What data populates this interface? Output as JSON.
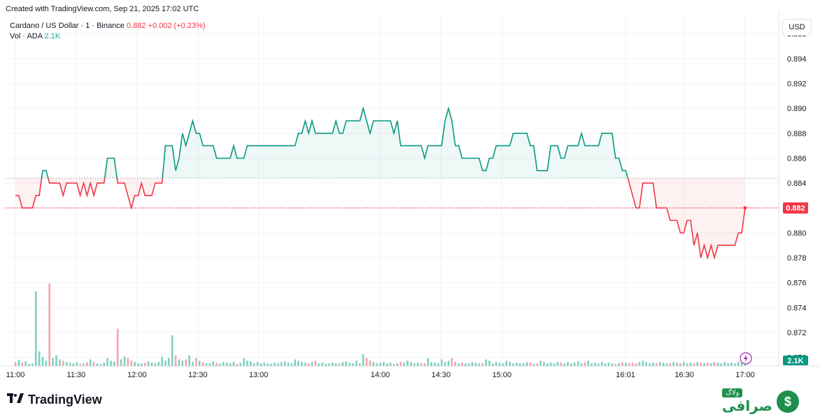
{
  "credit": "Created with TradingView.com, Sep 21, 2025 17:02 UTC",
  "legend": {
    "symbol": "Cardano / US Dollar · 1 · Binance",
    "price": "0.882",
    "change": "+0.002 (+0.23%)",
    "vol_label": "Vol · ADA",
    "vol_value": "2.1K"
  },
  "currency_button": "USD",
  "last_price_label": "0.882",
  "last_volume_label": "2.1K",
  "brand": "TradingView",
  "watermark": {
    "tag": "ولاگ",
    "word": "صرافی",
    "coin": "$"
  },
  "colors": {
    "up": "#089981",
    "down": "#f23645",
    "vol_up": "#7fcfbf",
    "vol_down": "#f7a1a8"
  },
  "chart_data": {
    "type": "line",
    "baseline": 0.8844,
    "last_price": 0.882,
    "y_ticks": [
      "0.896",
      "0.894",
      "0.892",
      "0.890",
      "0.888",
      "0.886",
      "0.884",
      "0.882",
      "0.880",
      "0.878",
      "0.876",
      "0.874",
      "0.872",
      "0.870"
    ],
    "ylim": [
      0.8693,
      0.8977
    ],
    "x_ticks": [
      {
        "label": "11:00",
        "t": 0
      },
      {
        "label": "11:30",
        "t": 30
      },
      {
        "label": "12:00",
        "t": 60
      },
      {
        "label": "12:30",
        "t": 90
      },
      {
        "label": "13:00",
        "t": 120
      },
      {
        "label": "14:00",
        "t": 180
      },
      {
        "label": "14:30",
        "t": 210
      },
      {
        "label": "15:00",
        "t": 240
      },
      {
        "label": "16:01",
        "t": 301
      },
      {
        "label": "16:30",
        "t": 330
      },
      {
        "label": "17:00",
        "t": 360
      }
    ],
    "price": [
      0.883,
      0.883,
      0.882,
      0.882,
      0.882,
      0.882,
      0.883,
      0.883,
      0.885,
      0.885,
      0.884,
      0.884,
      0.884,
      0.884,
      0.883,
      0.884,
      0.884,
      0.884,
      0.884,
      0.883,
      0.884,
      0.883,
      0.884,
      0.883,
      0.884,
      0.884,
      0.884,
      0.886,
      0.886,
      0.886,
      0.884,
      0.884,
      0.884,
      0.883,
      0.882,
      0.883,
      0.883,
      0.884,
      0.883,
      0.883,
      0.883,
      0.884,
      0.884,
      0.884,
      0.887,
      0.887,
      0.887,
      0.885,
      0.886,
      0.888,
      0.887,
      0.888,
      0.889,
      0.888,
      0.888,
      0.887,
      0.887,
      0.887,
      0.887,
      0.886,
      0.886,
      0.886,
      0.886,
      0.886,
      0.887,
      0.886,
      0.886,
      0.886,
      0.887,
      0.887,
      0.887,
      0.887,
      0.887,
      0.887,
      0.887,
      0.887,
      0.887,
      0.887,
      0.887,
      0.887,
      0.887,
      0.887,
      0.887,
      0.888,
      0.888,
      0.889,
      0.888,
      0.889,
      0.888,
      0.888,
      0.888,
      0.888,
      0.888,
      0.888,
      0.889,
      0.888,
      0.888,
      0.889,
      0.889,
      0.889,
      0.889,
      0.889,
      0.89,
      0.889,
      0.888,
      0.889,
      0.889,
      0.889,
      0.889,
      0.889,
      0.889,
      0.888,
      0.889,
      0.887,
      0.887,
      0.887,
      0.887,
      0.887,
      0.887,
      0.887,
      0.886,
      0.887,
      0.887,
      0.887,
      0.887,
      0.887,
      0.889,
      0.89,
      0.889,
      0.887,
      0.887,
      0.886,
      0.886,
      0.886,
      0.886,
      0.886,
      0.886,
      0.885,
      0.885,
      0.886,
      0.886,
      0.887,
      0.887,
      0.887,
      0.887,
      0.887,
      0.888,
      0.888,
      0.888,
      0.888,
      0.888,
      0.887,
      0.887,
      0.885,
      0.885,
      0.885,
      0.885,
      0.887,
      0.887,
      0.887,
      0.886,
      0.886,
      0.887,
      0.887,
      0.887,
      0.887,
      0.888,
      0.887,
      0.887,
      0.887,
      0.887,
      0.887,
      0.888,
      0.888,
      0.888,
      0.888,
      0.886,
      0.886,
      0.885,
      0.885,
      0.884,
      0.883,
      0.882,
      0.882,
      0.884,
      0.884,
      0.884,
      0.884,
      0.882,
      0.882,
      0.882,
      0.882,
      0.881,
      0.881,
      0.881,
      0.88,
      0.88,
      0.881,
      0.881,
      0.879,
      0.88,
      0.878,
      0.879,
      0.878,
      0.879,
      0.878,
      0.879,
      0.879,
      0.879,
      0.879,
      0.879,
      0.879,
      0.88,
      0.88,
      0.882
    ],
    "volume": [
      0.3,
      0.45,
      0.25,
      0.35,
      0.15,
      0.2,
      5.6,
      1.1,
      0.7,
      0.4,
      6.2,
      0.6,
      0.8,
      0.5,
      0.4,
      0.3,
      0.25,
      0.2,
      0.3,
      0.15,
      0.2,
      0.3,
      0.5,
      0.3,
      0.2,
      0.15,
      0.25,
      0.6,
      0.4,
      0.35,
      2.8,
      0.5,
      0.7,
      0.6,
      0.4,
      0.3,
      0.2,
      0.2,
      0.25,
      0.35,
      0.25,
      0.2,
      0.3,
      0.7,
      0.4,
      0.6,
      2.3,
      0.8,
      0.5,
      0.4,
      0.5,
      0.8,
      0.3,
      0.6,
      0.4,
      0.3,
      0.2,
      0.2,
      0.35,
      0.25,
      0.2,
      0.3,
      0.25,
      0.2,
      0.3,
      0.15,
      0.25,
      0.6,
      0.4,
      0.35,
      0.2,
      0.3,
      0.2,
      0.25,
      0.2,
      0.15,
      0.25,
      0.2,
      0.3,
      0.35,
      0.25,
      0.2,
      0.5,
      0.4,
      0.3,
      0.25,
      0.2,
      0.3,
      0.4,
      0.2,
      0.25,
      0.15,
      0.2,
      0.25,
      0.2,
      0.2,
      0.3,
      0.35,
      0.25,
      0.2,
      0.4,
      0.2,
      0.9,
      0.6,
      0.4,
      0.3,
      0.2,
      0.25,
      0.3,
      0.2,
      0.25,
      0.15,
      0.2,
      0.3,
      0.25,
      0.4,
      0.3,
      0.2,
      0.25,
      0.2,
      0.2,
      0.6,
      0.3,
      0.25,
      0.2,
      0.5,
      0.3,
      0.4,
      0.6,
      0.3,
      0.2,
      0.25,
      0.2,
      0.2,
      0.3,
      0.25,
      0.2,
      0.2,
      0.5,
      0.4,
      0.2,
      0.3,
      0.25,
      0.2,
      0.4,
      0.3,
      0.2,
      0.25,
      0.2,
      0.2,
      0.3,
      0.25,
      0.15,
      0.2,
      0.4,
      0.3,
      0.2,
      0.25,
      0.2,
      0.3,
      0.25,
      0.2,
      0.3,
      0.2,
      0.25,
      0.35,
      0.2,
      0.3,
      0.4,
      0.2,
      0.25,
      0.2,
      0.3,
      0.2,
      0.25,
      0.2,
      0.15,
      0.2,
      0.3,
      0.25,
      0.2,
      0.25,
      0.2,
      0.3,
      0.4,
      0.3,
      0.2,
      0.25,
      0.2,
      0.3,
      0.25,
      0.2,
      0.2,
      0.3,
      0.25,
      0.2,
      0.3,
      0.2,
      0.25,
      0.2,
      0.3,
      0.25,
      0.2,
      0.25,
      0.2,
      0.3,
      0.25,
      0.2,
      0.3,
      0.2,
      0.25,
      0.2,
      0.3,
      0.25,
      0.4
    ]
  }
}
